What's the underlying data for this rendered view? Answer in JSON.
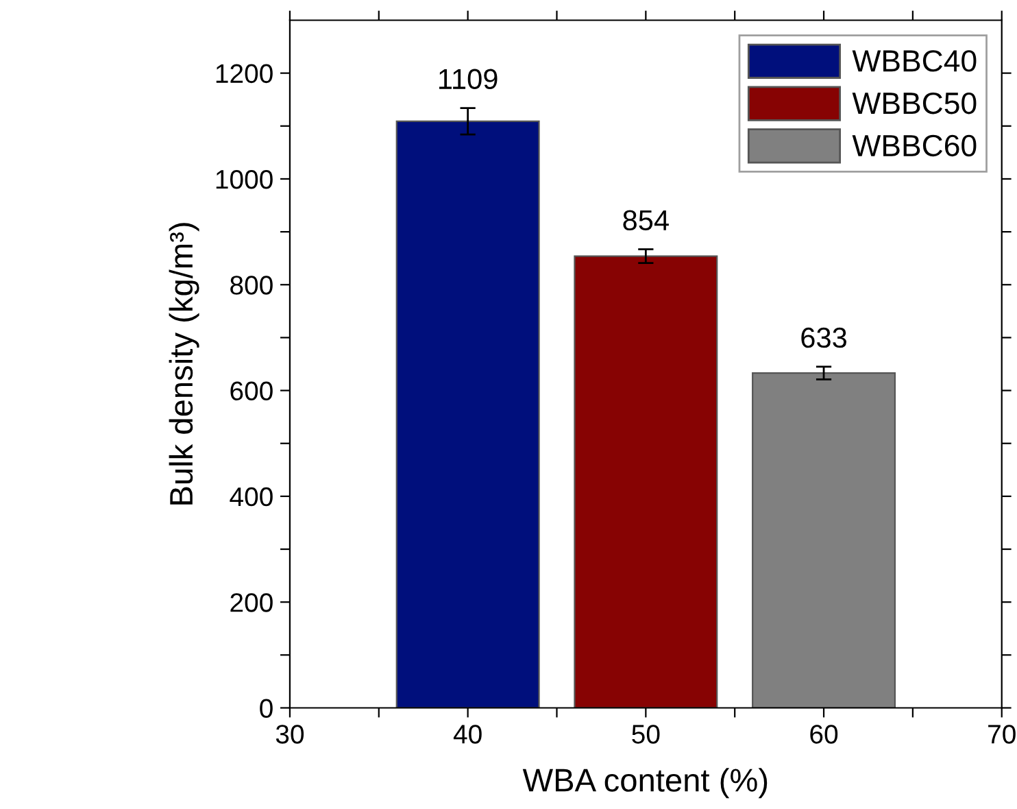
{
  "chart_data": {
    "type": "bar",
    "xlabel": "WBA content (%)",
    "ylabel": "Bulk density (kg/m³)",
    "xlim": [
      30,
      70
    ],
    "xticks": [
      30,
      {
        "value": 35,
        "label": null
      },
      40,
      {
        "value": 45,
        "label": null
      },
      50,
      {
        "value": 55,
        "label": null
      },
      60,
      {
        "value": 65,
        "label": null
      },
      70
    ],
    "ylim": [
      0,
      1300
    ],
    "yticks": [
      0,
      {
        "value": 100,
        "label": null
      },
      200,
      {
        "value": 300,
        "label": null
      },
      400,
      {
        "value": 500,
        "label": null
      },
      600,
      {
        "value": 700,
        "label": null
      },
      800,
      {
        "value": 900,
        "label": null
      },
      1000,
      {
        "value": 1100,
        "label": null
      },
      1200
    ],
    "series": [
      {
        "name": "WBBC40",
        "color": "#000f7c",
        "x": [
          40
        ],
        "values": [
          1109
        ],
        "errors": [
          25
        ]
      },
      {
        "name": "WBBC50",
        "color": "#870303",
        "x": [
          50
        ],
        "values": [
          854
        ],
        "errors": [
          13
        ]
      },
      {
        "name": "WBBC60",
        "color": "#808080",
        "x": [
          60
        ],
        "values": [
          633
        ],
        "errors": [
          12
        ]
      }
    ],
    "data_labels": true,
    "legend": "top right",
    "grid": false
  }
}
